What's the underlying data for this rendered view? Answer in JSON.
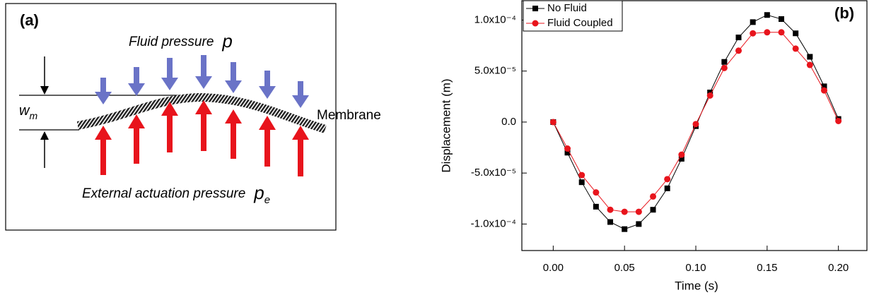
{
  "diagram": {
    "label": "(a)",
    "fluid_pressure": "Fluid pressure",
    "fluid_symbol": "p",
    "membrane": "Membrane",
    "w_symbol": "w",
    "w_subscript": "m",
    "external_pressure": "External actuation pressure",
    "external_symbol": "p",
    "external_subscript": "e"
  },
  "chart_data": {
    "type": "line",
    "panel_label": "(b)",
    "x_label": "Time (s)",
    "y_label": "Displacement (m)",
    "x": [
      0,
      0.01,
      0.02,
      0.03,
      0.04,
      0.05,
      0.06,
      0.07,
      0.08,
      0.09,
      0.1,
      0.11,
      0.12,
      0.13,
      0.14,
      0.15,
      0.16,
      0.17,
      0.18,
      0.19,
      0.2
    ],
    "series": [
      {
        "name": "No Fluid",
        "color": "#000000",
        "marker": "square",
        "values": [
          0,
          -3e-05,
          -5.9e-05,
          -8.3e-05,
          -9.8e-05,
          -0.000105,
          -0.0001,
          -8.6e-05,
          -6.5e-05,
          -3.6e-05,
          -4e-06,
          2.9e-05,
          5.9e-05,
          8.3e-05,
          9.8e-05,
          0.000105,
          0.000101,
          8.7e-05,
          6.4e-05,
          3.5e-05,
          3e-06
        ]
      },
      {
        "name": "Fluid Coupled",
        "color": "#e8141c",
        "marker": "circle",
        "values": [
          0,
          -2.6e-05,
          -5.2e-05,
          -6.9e-05,
          -8.6e-05,
          -8.8e-05,
          -8.8e-05,
          -7.3e-05,
          -5.6e-05,
          -3.2e-05,
          -2e-06,
          2.6e-05,
          5.3e-05,
          7e-05,
          8.7e-05,
          8.8e-05,
          8.8e-05,
          7.2e-05,
          5.6e-05,
          3.1e-05,
          1e-06
        ]
      }
    ],
    "xlim": [
      -0.022,
      0.22
    ],
    "ylim": [
      -0.000126,
      0.000119
    ],
    "xticks": [
      {
        "value": 0,
        "label": "0.00"
      },
      {
        "value": 0.05,
        "label": "0.05"
      },
      {
        "value": 0.1,
        "label": "0.10"
      },
      {
        "value": 0.15,
        "label": "0.15"
      },
      {
        "value": 0.2,
        "label": "0.20"
      }
    ],
    "yticks": [
      {
        "value": -0.0001,
        "label": "-1.0x10⁻⁴"
      },
      {
        "value": -5e-05,
        "label": "-5.0x10⁻⁵"
      },
      {
        "value": 0,
        "label": "0.0"
      },
      {
        "value": 5e-05,
        "label": "5.0x10⁻⁵"
      },
      {
        "value": 0.0001,
        "label": "1.0x10⁻⁴"
      }
    ],
    "grid": false,
    "legend": "upper left"
  }
}
